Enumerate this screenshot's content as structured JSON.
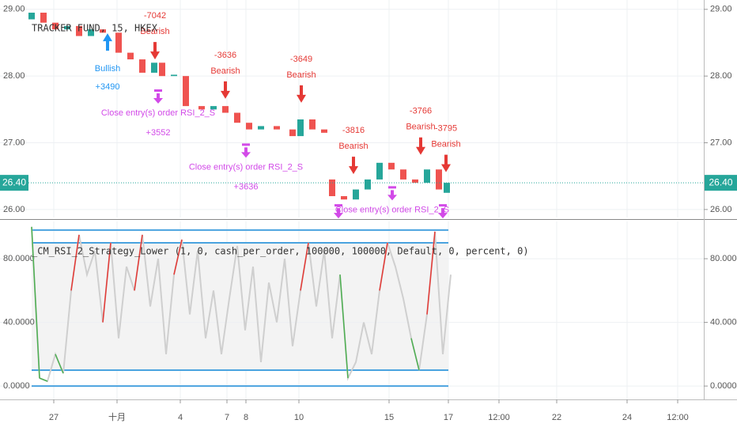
{
  "chart_data": [
    {
      "type": "candlestick",
      "title": "TRACKER FUND, 15, HKEX",
      "x": [
        4,
        5.5,
        7,
        8.5,
        10,
        11.5,
        13,
        15,
        16.5,
        18,
        19.5,
        20.5,
        22,
        23.5,
        25.5,
        27,
        28.5,
        30,
        31.5,
        33,
        35,
        37,
        38,
        39.5,
        41,
        42,
        43.5,
        45,
        46.5,
        48,
        49.5,
        51,
        52.5,
        54,
        55.5,
        56.5
      ],
      "open": [
        28.85,
        28.95,
        28.8,
        28.7,
        28.75,
        28.6,
        28.7,
        28.65,
        28.35,
        28.25,
        28.05,
        28.2,
        28.0,
        28.0,
        27.55,
        27.5,
        27.55,
        27.45,
        27.3,
        27.2,
        27.25,
        27.2,
        27.1,
        27.35,
        27.2,
        26.45,
        26.2,
        26.15,
        26.3,
        26.45,
        26.7,
        26.6,
        26.45,
        26.4,
        26.6,
        26.25
      ],
      "close": [
        28.95,
        28.8,
        28.7,
        28.75,
        28.6,
        28.7,
        28.65,
        28.35,
        28.25,
        28.05,
        28.2,
        28.0,
        28.02,
        27.55,
        27.5,
        27.55,
        27.45,
        27.3,
        27.2,
        27.25,
        27.2,
        27.1,
        27.35,
        27.2,
        27.15,
        26.2,
        26.15,
        26.3,
        26.45,
        26.7,
        26.6,
        26.45,
        26.4,
        26.6,
        26.3,
        26.4
      ],
      "up_color": "#26a69a",
      "down_color": "#ef5350",
      "xlim": [
        0,
        89
      ],
      "xticks": [
        {
          "value": 6.8,
          "label": "27"
        },
        {
          "value": 14.8,
          "label": "十月"
        },
        {
          "value": 22.8,
          "label": "4"
        },
        {
          "value": 28.7,
          "label": "7"
        },
        {
          "value": 31.1,
          "label": "8"
        },
        {
          "value": 37.8,
          "label": "10"
        },
        {
          "value": 49.2,
          "label": "15"
        },
        {
          "value": 56.7,
          "label": "17"
        },
        {
          "value": 63.1,
          "label": "12:00"
        },
        {
          "value": 70.4,
          "label": "22"
        },
        {
          "value": 79.3,
          "label": "24"
        },
        {
          "value": 85.7,
          "label": "12:00"
        }
      ],
      "ylim": [
        25.88,
        29.14
      ],
      "yticks": [
        {
          "value": 26,
          "label": "26.00"
        },
        {
          "value": 27,
          "label": "27.00"
        },
        {
          "value": 28,
          "label": "28.00"
        },
        {
          "value": 29,
          "label": "29.00"
        }
      ],
      "last_price": {
        "value": 26.4,
        "label": "26.40"
      },
      "last_color": "#26a69a",
      "grid": true,
      "signal_colors": {
        "bearish": "#e53935",
        "bullish": "#2196f3",
        "close": "#d24ae8"
      },
      "signals": [
        {
          "kind": "bullish",
          "x": 13.6,
          "y": 28.64,
          "texts": [
            "Bullish",
            "+3490"
          ]
        },
        {
          "kind": "bearish",
          "x": 19.6,
          "y": 28.25,
          "texts": [
            "-7042",
            "Bearish"
          ]
        },
        {
          "kind": "close",
          "x": 20.0,
          "y": 27.8,
          "texts": [
            "Close entry(s) order RSI_2_S",
            "+3552"
          ]
        },
        {
          "kind": "bearish",
          "x": 28.5,
          "y": 27.66,
          "texts": [
            "-3636",
            "Bearish"
          ]
        },
        {
          "kind": "close",
          "x": 31.1,
          "y": 26.99,
          "texts": [
            "Close entry(s) order RSI_2_S",
            "+3636"
          ]
        },
        {
          "kind": "bearish",
          "x": 38.1,
          "y": 27.6,
          "texts": [
            "-3649",
            "Bearish"
          ]
        },
        {
          "kind": "close",
          "x": 42.8,
          "y": 26.08
        },
        {
          "kind": "bearish",
          "x": 44.7,
          "y": 26.53,
          "texts": [
            "-3816",
            "Bearish"
          ]
        },
        {
          "kind": "close",
          "x": 49.6,
          "y": 26.35,
          "texts": [
            "Close entry(s) order RSI_2_S"
          ]
        },
        {
          "kind": "bearish",
          "x": 53.2,
          "y": 26.82,
          "texts": [
            "-3766",
            "Bearish"
          ]
        },
        {
          "kind": "close",
          "x": 56.0,
          "y": 26.08
        },
        {
          "kind": "bearish",
          "x": 56.4,
          "y": 26.56,
          "texts": [
            "-3795",
            "Bearish"
          ]
        }
      ]
    },
    {
      "type": "line",
      "title": "_CM_RSI_2_Strategy_Lower (1, 0, cash_per_order, 100000, 100000, Default, 0, percent, 0)",
      "x": [
        4,
        5,
        6,
        7,
        8,
        9,
        10,
        11,
        12,
        13,
        14,
        15,
        16,
        17,
        18,
        19,
        20,
        21,
        22,
        23,
        24,
        25,
        26,
        27,
        28,
        29,
        30,
        31,
        32,
        33,
        34,
        35,
        36,
        37,
        38,
        39,
        40,
        41,
        42,
        43,
        44,
        45,
        46,
        47,
        48,
        49,
        50,
        51,
        52,
        53,
        54,
        55,
        56,
        57
      ],
      "values": [
        100,
        5,
        3,
        20,
        8,
        60,
        95,
        70,
        85,
        40,
        90,
        30,
        75,
        60,
        95,
        50,
        80,
        20,
        70,
        92,
        45,
        85,
        30,
        60,
        20,
        55,
        88,
        35,
        75,
        15,
        65,
        40,
        80,
        25,
        60,
        90,
        50,
        85,
        30,
        70,
        5,
        15,
        40,
        20,
        60,
        90,
        75,
        55,
        30,
        10,
        45,
        97,
        20,
        70
      ],
      "color": "#cfcfcf",
      "high_color": "#e53935",
      "low_color": "#4caf50",
      "ylim": [
        -8.4,
        103.4
      ],
      "yticks": [
        {
          "value": 0,
          "label": "0.0000"
        },
        {
          "value": 40,
          "label": "40.0000"
        },
        {
          "value": 80,
          "label": "80.0000"
        }
      ],
      "levels": [
        0,
        10,
        90,
        98
      ],
      "level_color": "#4aa3df",
      "band_color": "#f3f3f3",
      "grid": true
    }
  ]
}
